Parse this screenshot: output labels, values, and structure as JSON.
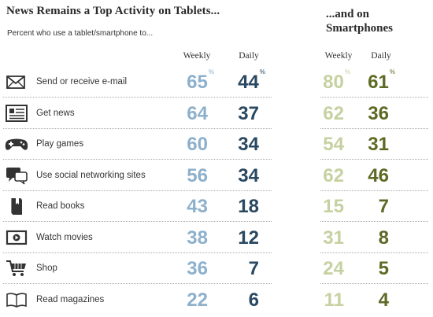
{
  "title": "News Remains a Top Activity on Tablets...",
  "subtitle": "Percent who use a tablet/smartphone to...",
  "title_smartphones": "...and on Smartphones",
  "columns": {
    "tablet_weekly": "Weekly",
    "tablet_daily": "Daily",
    "smart_weekly": "Weekly",
    "smart_daily": "Daily"
  },
  "percent_sign": "%",
  "colors": {
    "tablet_weekly": "#8db0cc",
    "tablet_daily": "#294861",
    "smart_weekly": "#c6d1a1",
    "smart_daily": "#5d6a24"
  },
  "chart_data": {
    "type": "table",
    "title": "News Remains a Top Activity on Tablets... ...and on Smartphones",
    "subtitle": "Percent who use a tablet/smartphone to...",
    "columns": [
      "Tablet Weekly",
      "Tablet Daily",
      "Smartphone Weekly",
      "Smartphone Daily"
    ],
    "rows": [
      {
        "label": "Send or receive e-mail",
        "icon": "envelope-icon",
        "tablet_weekly": "65",
        "tablet_daily": "44",
        "smart_weekly": "80",
        "smart_daily": "61"
      },
      {
        "label": "Get news",
        "icon": "newspaper-icon",
        "tablet_weekly": "64",
        "tablet_daily": "37",
        "smart_weekly": "62",
        "smart_daily": "36"
      },
      {
        "label": "Play games",
        "icon": "gamepad-icon",
        "tablet_weekly": "60",
        "tablet_daily": "34",
        "smart_weekly": "54",
        "smart_daily": "31"
      },
      {
        "label": "Use social networking sites",
        "icon": "speech-bubble-icon",
        "tablet_weekly": "56",
        "tablet_daily": "34",
        "smart_weekly": "62",
        "smart_daily": "46"
      },
      {
        "label": "Read books",
        "icon": "book-icon",
        "tablet_weekly": "43",
        "tablet_daily": "18",
        "smart_weekly": "15",
        "smart_daily": "7"
      },
      {
        "label": "Watch movies",
        "icon": "play-screen-icon",
        "tablet_weekly": "38",
        "tablet_daily": "12",
        "smart_weekly": "31",
        "smart_daily": "8"
      },
      {
        "label": "Shop",
        "icon": "shopping-cart-icon",
        "tablet_weekly": "36",
        "tablet_daily": "7",
        "smart_weekly": "24",
        "smart_daily": "5"
      },
      {
        "label": "Read magazines",
        "icon": "open-magazine-icon",
        "tablet_weekly": "22",
        "tablet_daily": "6",
        "smart_weekly": "11",
        "smart_daily": "4"
      }
    ]
  }
}
